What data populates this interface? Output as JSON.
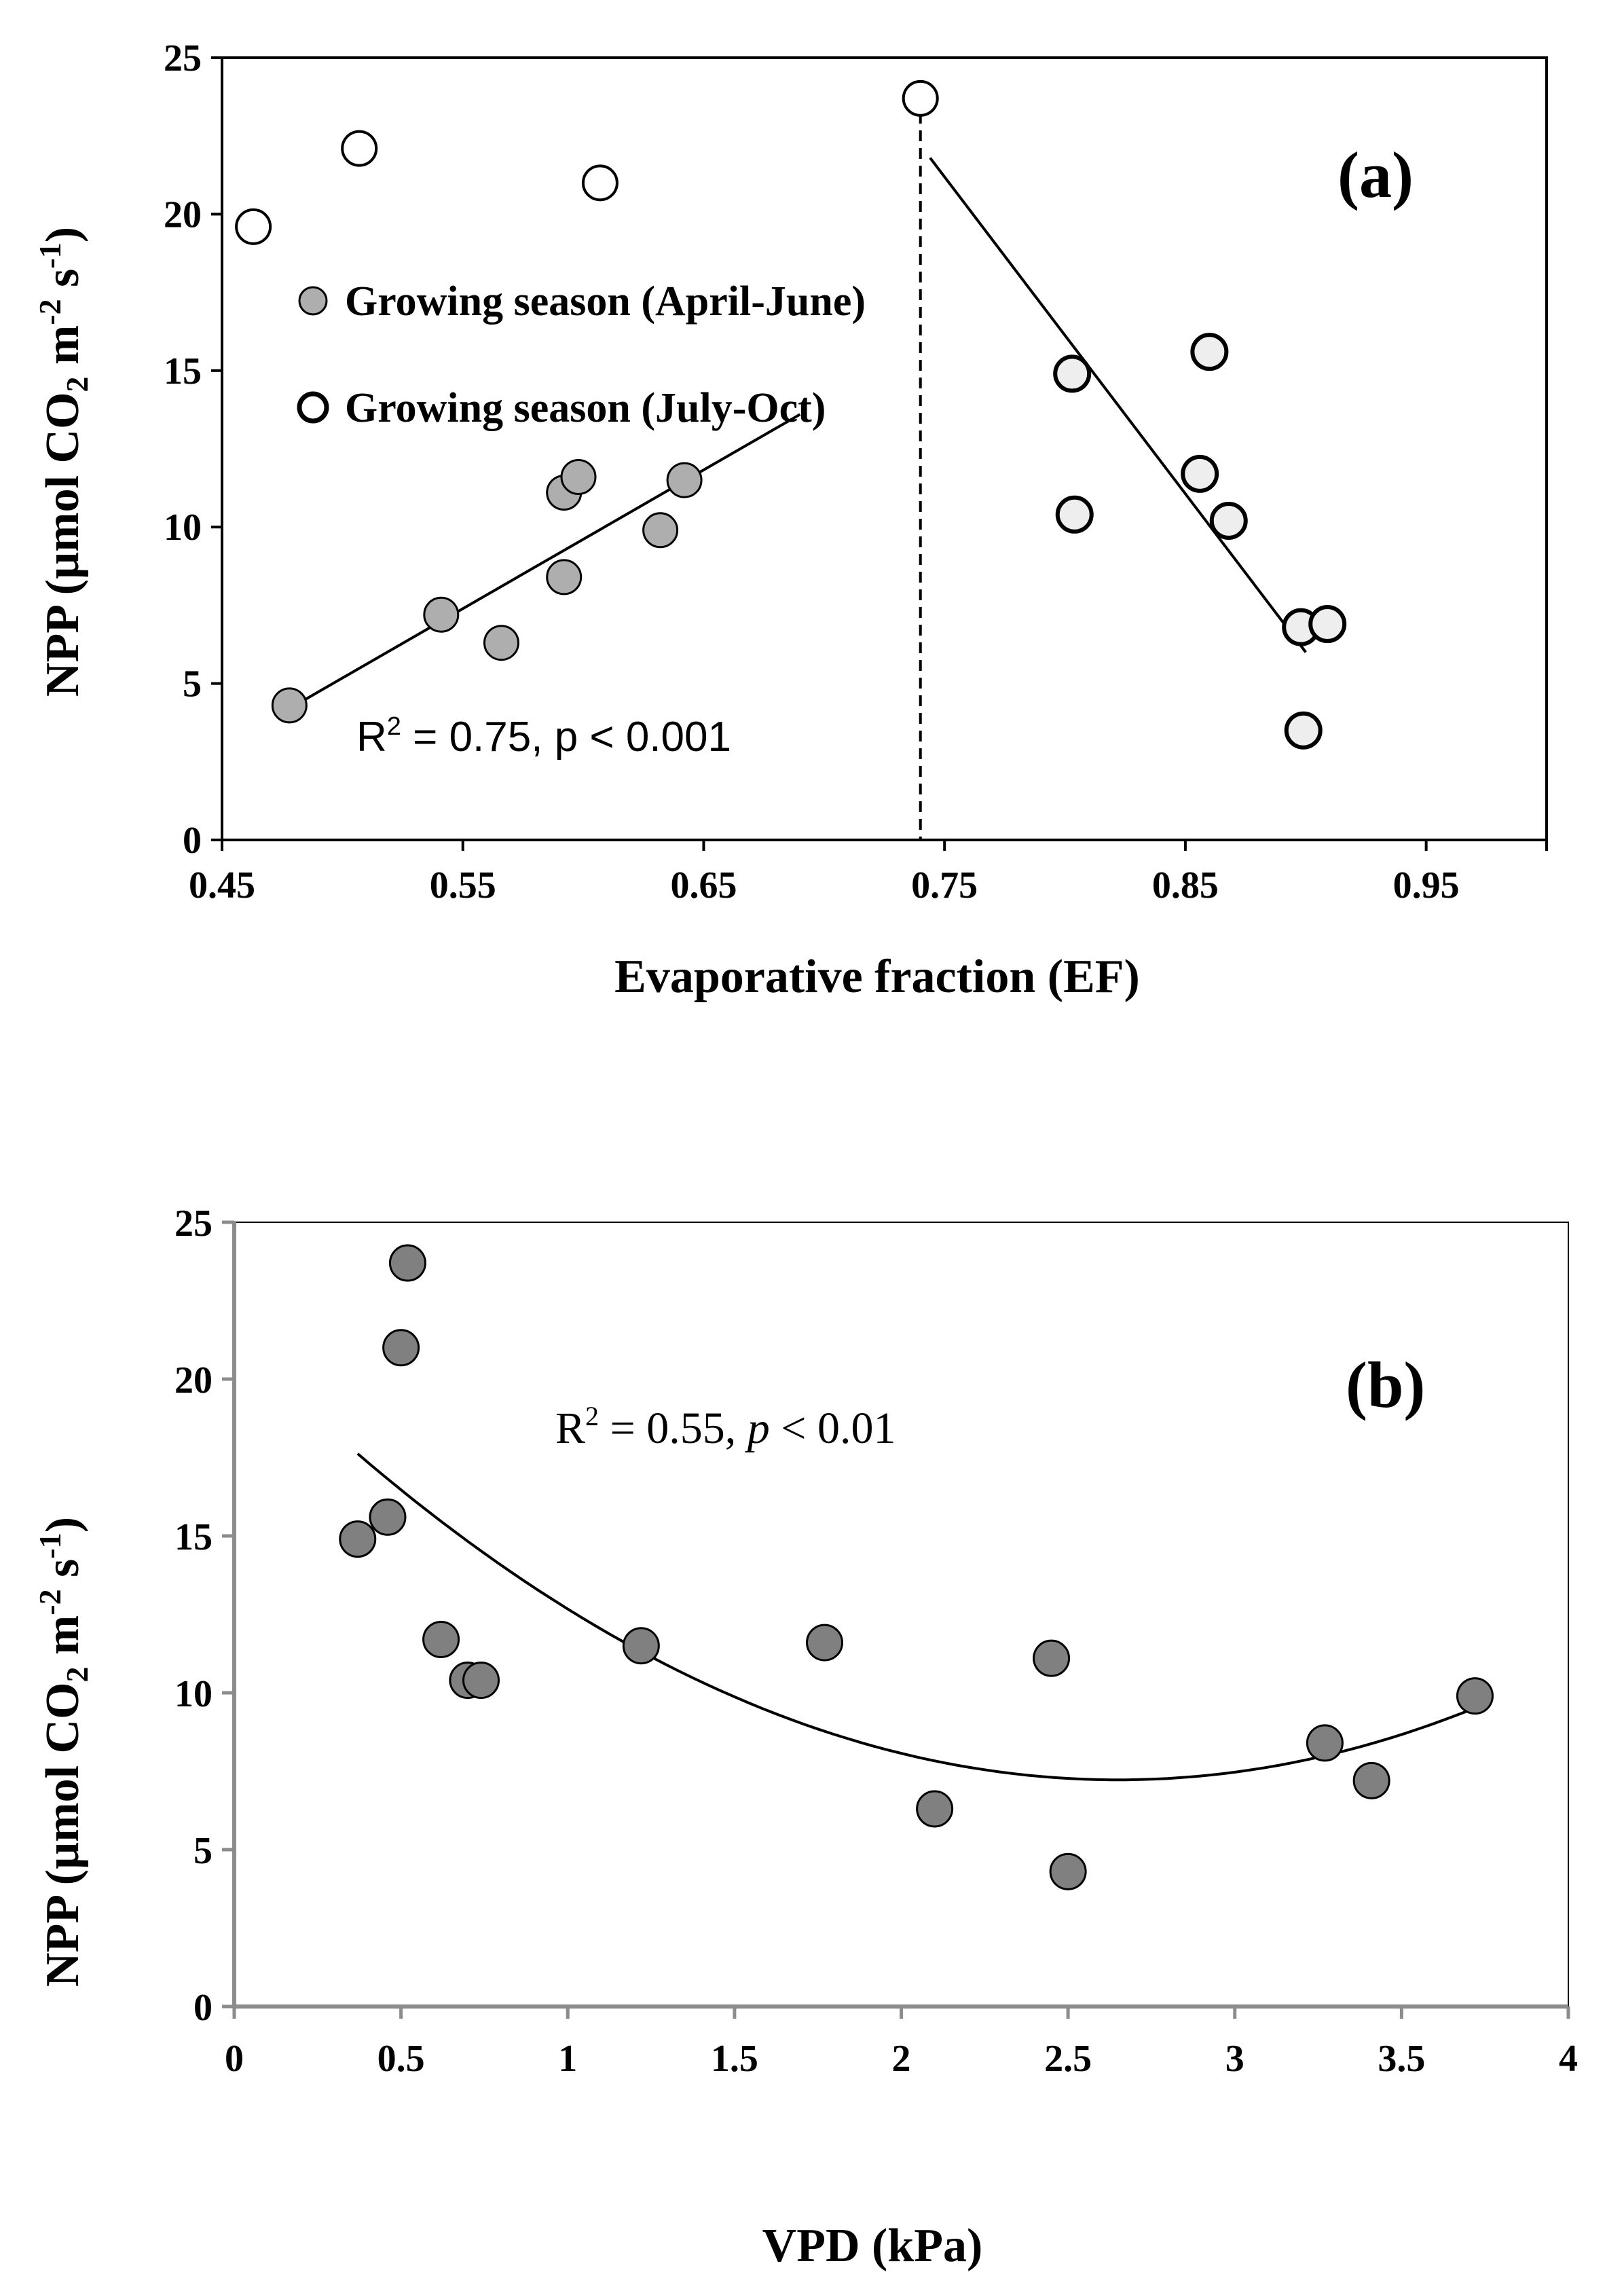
{
  "colors": {
    "growing_april_june": "#aeaeae",
    "growing_july_oct_early": "#ffffff",
    "growing_july_oct_late": "#eeeeee",
    "vpd_points": "#808080",
    "axis_a": "#000000",
    "axis_b": "#8c8c8c"
  },
  "chart_data": [
    {
      "type": "scatter",
      "panel_label": "(a)",
      "xlabel": "Evaporative fraction (EF)",
      "ylabel": "NPP (µmol CO₂ m⁻² s⁻¹)",
      "xlim": [
        0.45,
        1.0
      ],
      "ylim": [
        0,
        25
      ],
      "xticks": [
        "0.45",
        "0.55",
        "0.65",
        "0.75",
        "0.85",
        "0.95"
      ],
      "yticks": [
        "0",
        "5",
        "10",
        "15",
        "20",
        "25"
      ],
      "threshold_x": 0.74,
      "legend": [
        {
          "label": "Growing season (April-June)"
        },
        {
          "label": "Growing season (July-Oct)"
        }
      ],
      "series": [
        {
          "name": "Growing season (April-June)",
          "x": [
            0.478,
            0.541,
            0.566,
            0.592,
            0.592,
            0.598,
            0.632,
            0.642
          ],
          "y": [
            4.3,
            7.2,
            6.3,
            8.4,
            11.1,
            11.6,
            9.9,
            11.5
          ]
        },
        {
          "name": "Growing season (July-Oct)",
          "x": [
            0.463,
            0.507,
            0.607,
            0.74
          ],
          "y": [
            19.6,
            22.1,
            21.0,
            23.7
          ]
        },
        {
          "name": "Growing season (July-Oct)",
          "x": [
            0.803,
            0.804,
            0.856,
            0.86,
            0.868,
            0.898,
            0.899,
            0.909
          ],
          "y": [
            14.9,
            10.4,
            11.7,
            15.6,
            10.2,
            6.8,
            3.5,
            6.9
          ]
        }
      ],
      "trend_lines": [
        {
          "x": [
            0.478,
            0.69
          ],
          "y": [
            4.2,
            13.6
          ]
        },
        {
          "x": [
            0.744,
            0.9
          ],
          "y": [
            21.8,
            6.0
          ]
        }
      ],
      "annotation": {
        "r2_prefix": "R",
        "r2_sup": "2",
        "r2_value": " = 0.75, p < 0.001"
      }
    },
    {
      "type": "scatter",
      "panel_label": "(b)",
      "xlabel": "VPD (kPa)",
      "ylabel": "NPP (µmol CO₂ m⁻² s⁻¹)",
      "xlim": [
        0,
        4
      ],
      "ylim": [
        0,
        25
      ],
      "xticks": [
        "0",
        "0.5",
        "1",
        "1.5",
        "2",
        "2.5",
        "3",
        "3.5",
        "4"
      ],
      "yticks": [
        "0",
        "5",
        "10",
        "15",
        "20",
        "25"
      ],
      "series": [
        {
          "x": [
            0.37,
            0.46,
            0.5,
            0.52,
            0.62,
            0.7,
            0.74,
            1.22,
            1.77,
            2.1,
            2.45,
            2.5,
            3.27,
            3.41,
            3.72
          ],
          "y": [
            14.9,
            15.6,
            21.0,
            23.7,
            11.7,
            10.4,
            10.4,
            11.5,
            11.6,
            6.3,
            11.1,
            4.3,
            8.4,
            7.2,
            9.9
          ]
        }
      ],
      "fit_curve": {
        "type": "quadratic",
        "x_range": [
          0.37,
          3.72
        ],
        "coefficients": [
          21.27,
          -10.6,
          2.0
        ]
      },
      "annotation": {
        "r2_prefix": "R",
        "r2_sup": "2",
        "r2_mid": " = 0.55, ",
        "r2_p": "p",
        "r2_tail": " < 0.01"
      }
    }
  ]
}
